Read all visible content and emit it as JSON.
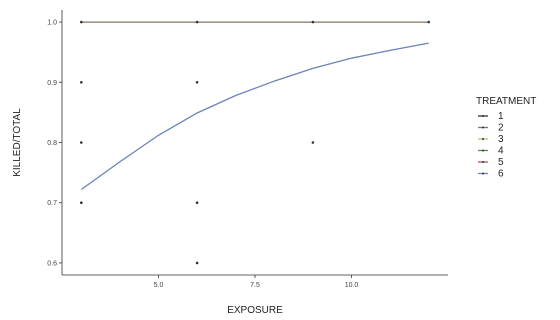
{
  "chart_data": {
    "type": "scatter",
    "title": "",
    "xlabel": "EXPOSURE",
    "ylabel": "KILLED/TOTAL",
    "xlim": [
      2.5,
      12.5
    ],
    "ylim": [
      0.58,
      1.02
    ],
    "x_ticks": [
      5.0,
      7.5,
      10.0
    ],
    "x_tick_labels": [
      "5.0",
      "7.5",
      "10.0"
    ],
    "y_ticks": [
      0.6,
      0.7,
      0.8,
      0.9,
      1.0
    ],
    "y_tick_labels": [
      "0.6",
      "0.7",
      "0.8",
      "0.9",
      "1.0"
    ],
    "grid": false,
    "legend": {
      "title": "TREATMENT",
      "position": "right",
      "entries": [
        {
          "label": "1",
          "color": "#333333"
        },
        {
          "label": "2",
          "color": "#777777"
        },
        {
          "label": "3",
          "color": "#b8c07a"
        },
        {
          "label": "4",
          "color": "#5a8a55"
        },
        {
          "label": "5",
          "color": "#a05a5a"
        },
        {
          "label": "6",
          "color": "#6b83b8"
        }
      ]
    },
    "points": [
      {
        "x": 3,
        "y": 1.0
      },
      {
        "x": 3,
        "y": 0.9
      },
      {
        "x": 3,
        "y": 0.8
      },
      {
        "x": 3,
        "y": 0.7
      },
      {
        "x": 6,
        "y": 1.0
      },
      {
        "x": 6,
        "y": 0.9
      },
      {
        "x": 6,
        "y": 0.7
      },
      {
        "x": 6,
        "y": 0.6
      },
      {
        "x": 9,
        "y": 1.0
      },
      {
        "x": 9,
        "y": 0.8
      },
      {
        "x": 12,
        "y": 1.0
      }
    ],
    "series": [
      {
        "name": "1",
        "color": "#333333",
        "x": [
          3,
          12
        ],
        "y": [
          1.0,
          1.0
        ]
      },
      {
        "name": "2",
        "color": "#777777",
        "x": [
          3,
          12
        ],
        "y": [
          1.0,
          1.0
        ]
      },
      {
        "name": "3",
        "color": "#b8c07a",
        "x": [
          3,
          12
        ],
        "y": [
          1.0,
          1.0
        ]
      },
      {
        "name": "4",
        "color": "#5a8a55",
        "x": [
          3,
          12
        ],
        "y": [
          1.0,
          1.0
        ]
      },
      {
        "name": "5",
        "color": "#a05a5a",
        "x": [
          3,
          12
        ],
        "y": [
          1.0,
          1.0
        ]
      },
      {
        "name": "6",
        "color": "#6b83b8",
        "x": [
          3,
          4,
          5,
          6,
          7,
          8,
          9,
          10,
          11,
          12
        ],
        "y": [
          0.722,
          0.768,
          0.812,
          0.849,
          0.878,
          0.902,
          0.923,
          0.94,
          0.953,
          0.965
        ]
      }
    ]
  }
}
